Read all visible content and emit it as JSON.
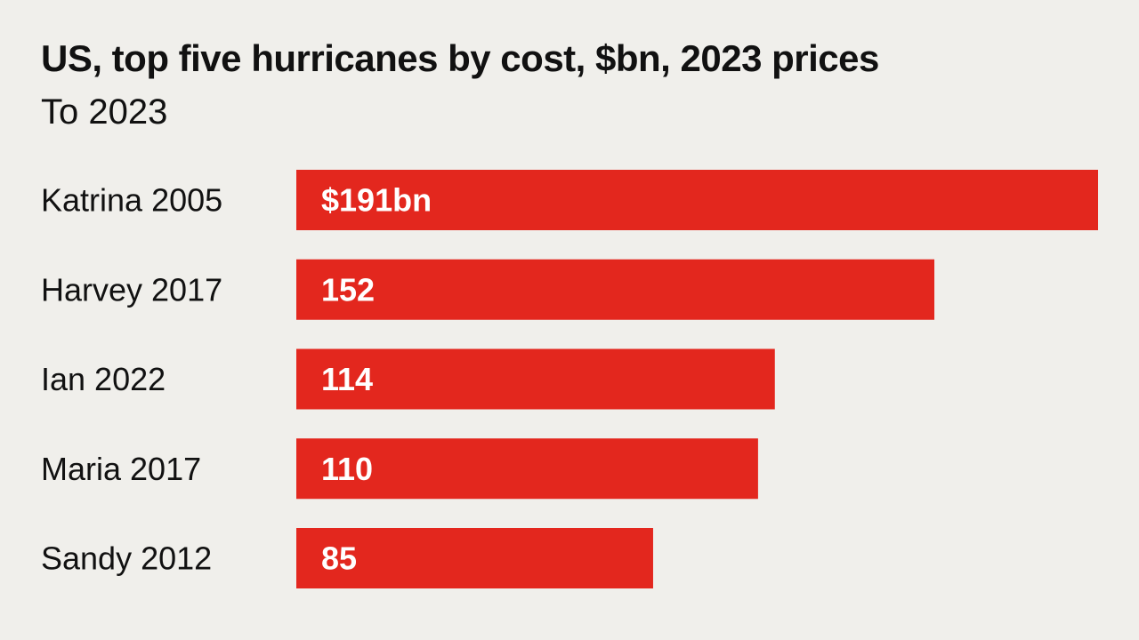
{
  "chart_data": {
    "type": "bar",
    "orientation": "horizontal",
    "title": "US, top five hurricanes by cost, $bn, 2023 prices",
    "subtitle": "To 2023",
    "categories": [
      "Katrina 2005",
      "Harvey 2017",
      "Ian 2022",
      "Maria 2017",
      "Sandy 2012"
    ],
    "values": [
      191,
      152,
      114,
      110,
      85
    ],
    "data_labels": [
      "$191bn",
      "152",
      "114",
      "110",
      "85"
    ],
    "xlim": [
      0,
      191
    ],
    "grid": false,
    "legend": "none",
    "bar_color": "#e3271e",
    "label_color": "#ffffff"
  },
  "colors": {
    "background": "#f0efeb",
    "text": "#111111"
  }
}
